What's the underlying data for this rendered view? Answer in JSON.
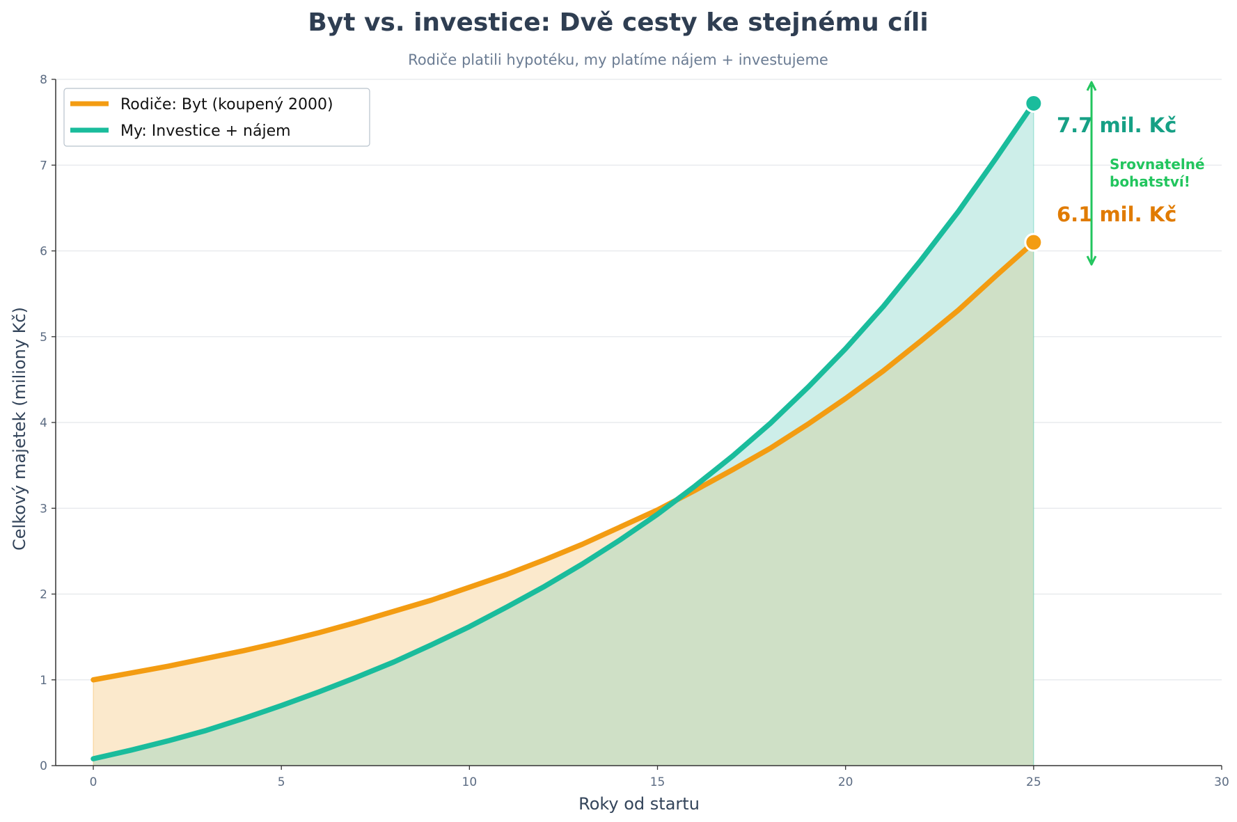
{
  "chart_data": {
    "type": "line",
    "title": "Byt vs. investice: Dvě cesty ke stejnému cíli",
    "subtitle": "Rodiče platili hypotéku, my platíme nájem + investujeme",
    "xlabel": "Roky od startu",
    "ylabel": "Celkový majetek (miliony Kč)",
    "xlim": [
      -1,
      30
    ],
    "ylim": [
      0,
      8
    ],
    "x_ticks": [
      0,
      5,
      10,
      15,
      20,
      25,
      30
    ],
    "y_ticks": [
      0,
      1,
      2,
      3,
      4,
      5,
      6,
      7,
      8
    ],
    "grid": "horizontal",
    "legend_position": "top-left",
    "x": [
      0,
      1,
      2,
      3,
      4,
      5,
      6,
      7,
      8,
      9,
      10,
      11,
      12,
      13,
      14,
      15,
      16,
      17,
      18,
      19,
      20,
      21,
      22,
      23,
      24,
      25
    ],
    "series": [
      {
        "name": "Rodiče: Byt (koupený 2000)",
        "color": "#f39c12",
        "fill": "#fbe9cc",
        "values": [
          1.0,
          1.08,
          1.16,
          1.25,
          1.34,
          1.44,
          1.55,
          1.67,
          1.8,
          1.93,
          2.08,
          2.23,
          2.4,
          2.58,
          2.78,
          2.98,
          3.21,
          3.45,
          3.7,
          3.98,
          4.28,
          4.6,
          4.95,
          5.31,
          5.71,
          6.1
        ]
      },
      {
        "name": "My: Investice + nájem",
        "color": "#1abc9c",
        "fill": "#cdeee9",
        "values": [
          0.08,
          0.18,
          0.29,
          0.41,
          0.55,
          0.7,
          0.86,
          1.03,
          1.21,
          1.41,
          1.62,
          1.85,
          2.09,
          2.35,
          2.63,
          2.93,
          3.26,
          3.61,
          3.99,
          4.41,
          4.86,
          5.35,
          5.89,
          6.46,
          7.08,
          7.72
        ]
      }
    ],
    "overlap_fill": "#cfe0c6",
    "annotations": {
      "end_investice": {
        "text": "7.7 mil. Kč",
        "color": "#16a085"
      },
      "end_byt": {
        "text": "6.1 mil. Kč",
        "color": "#e07b00"
      },
      "comparison": {
        "line1": "Srovnatelné",
        "line2": "bohatství!",
        "color": "#22c55e"
      }
    },
    "colors": {
      "text_dark": "#2f3e52",
      "grid": "#e4e7eb",
      "axis": "#333333"
    }
  }
}
